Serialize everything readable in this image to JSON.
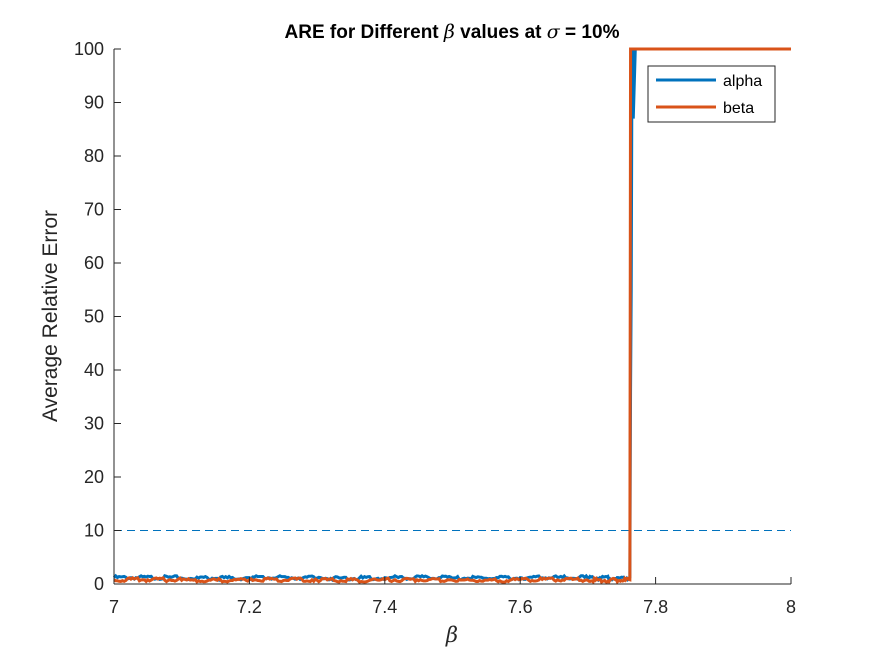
{
  "chart_data": {
    "type": "line",
    "title_parts": [
      "ARE for Different ",
      "β",
      " values at ",
      "σ",
      " = 10%"
    ],
    "xlabel": "β",
    "ylabel": "Average Relative Error",
    "xlim": [
      7,
      8
    ],
    "ylim": [
      0,
      100
    ],
    "x_ticks": [
      7,
      7.2,
      7.4,
      7.6,
      7.8,
      8
    ],
    "x_tick_labels": [
      "7",
      "7.2",
      "7.4",
      "7.6",
      "7.8",
      "8"
    ],
    "y_ticks": [
      0,
      10,
      20,
      30,
      40,
      50,
      60,
      70,
      80,
      90,
      100
    ],
    "y_tick_labels": [
      "0",
      "10",
      "20",
      "30",
      "40",
      "50",
      "60",
      "70",
      "80",
      "90",
      "100"
    ],
    "reference_line": {
      "y": 10,
      "style": "dashed",
      "color": "#0072BD"
    },
    "legend_position": "top-right",
    "series": [
      {
        "name": "alpha",
        "color": "#0072BD",
        "x": [
          7.0,
          7.1,
          7.2,
          7.3,
          7.4,
          7.5,
          7.6,
          7.7,
          7.762,
          7.763,
          7.764,
          7.765,
          7.766,
          7.767,
          7.77,
          7.8,
          7.9,
          8.0
        ],
        "y": [
          1.2,
          1.1,
          1.2,
          1.1,
          1.2,
          1.1,
          1.2,
          1.1,
          1.2,
          36,
          55,
          95,
          100,
          87,
          100,
          100,
          100,
          100
        ]
      },
      {
        "name": "beta",
        "color": "#D95319",
        "x": [
          7.0,
          7.1,
          7.2,
          7.3,
          7.4,
          7.5,
          7.6,
          7.7,
          7.762,
          7.763,
          7.765,
          7.8,
          7.9,
          8.0
        ],
        "y": [
          0.8,
          0.7,
          0.8,
          0.7,
          0.8,
          0.7,
          0.8,
          0.7,
          0.8,
          100,
          100,
          100,
          100,
          100
        ]
      }
    ]
  }
}
